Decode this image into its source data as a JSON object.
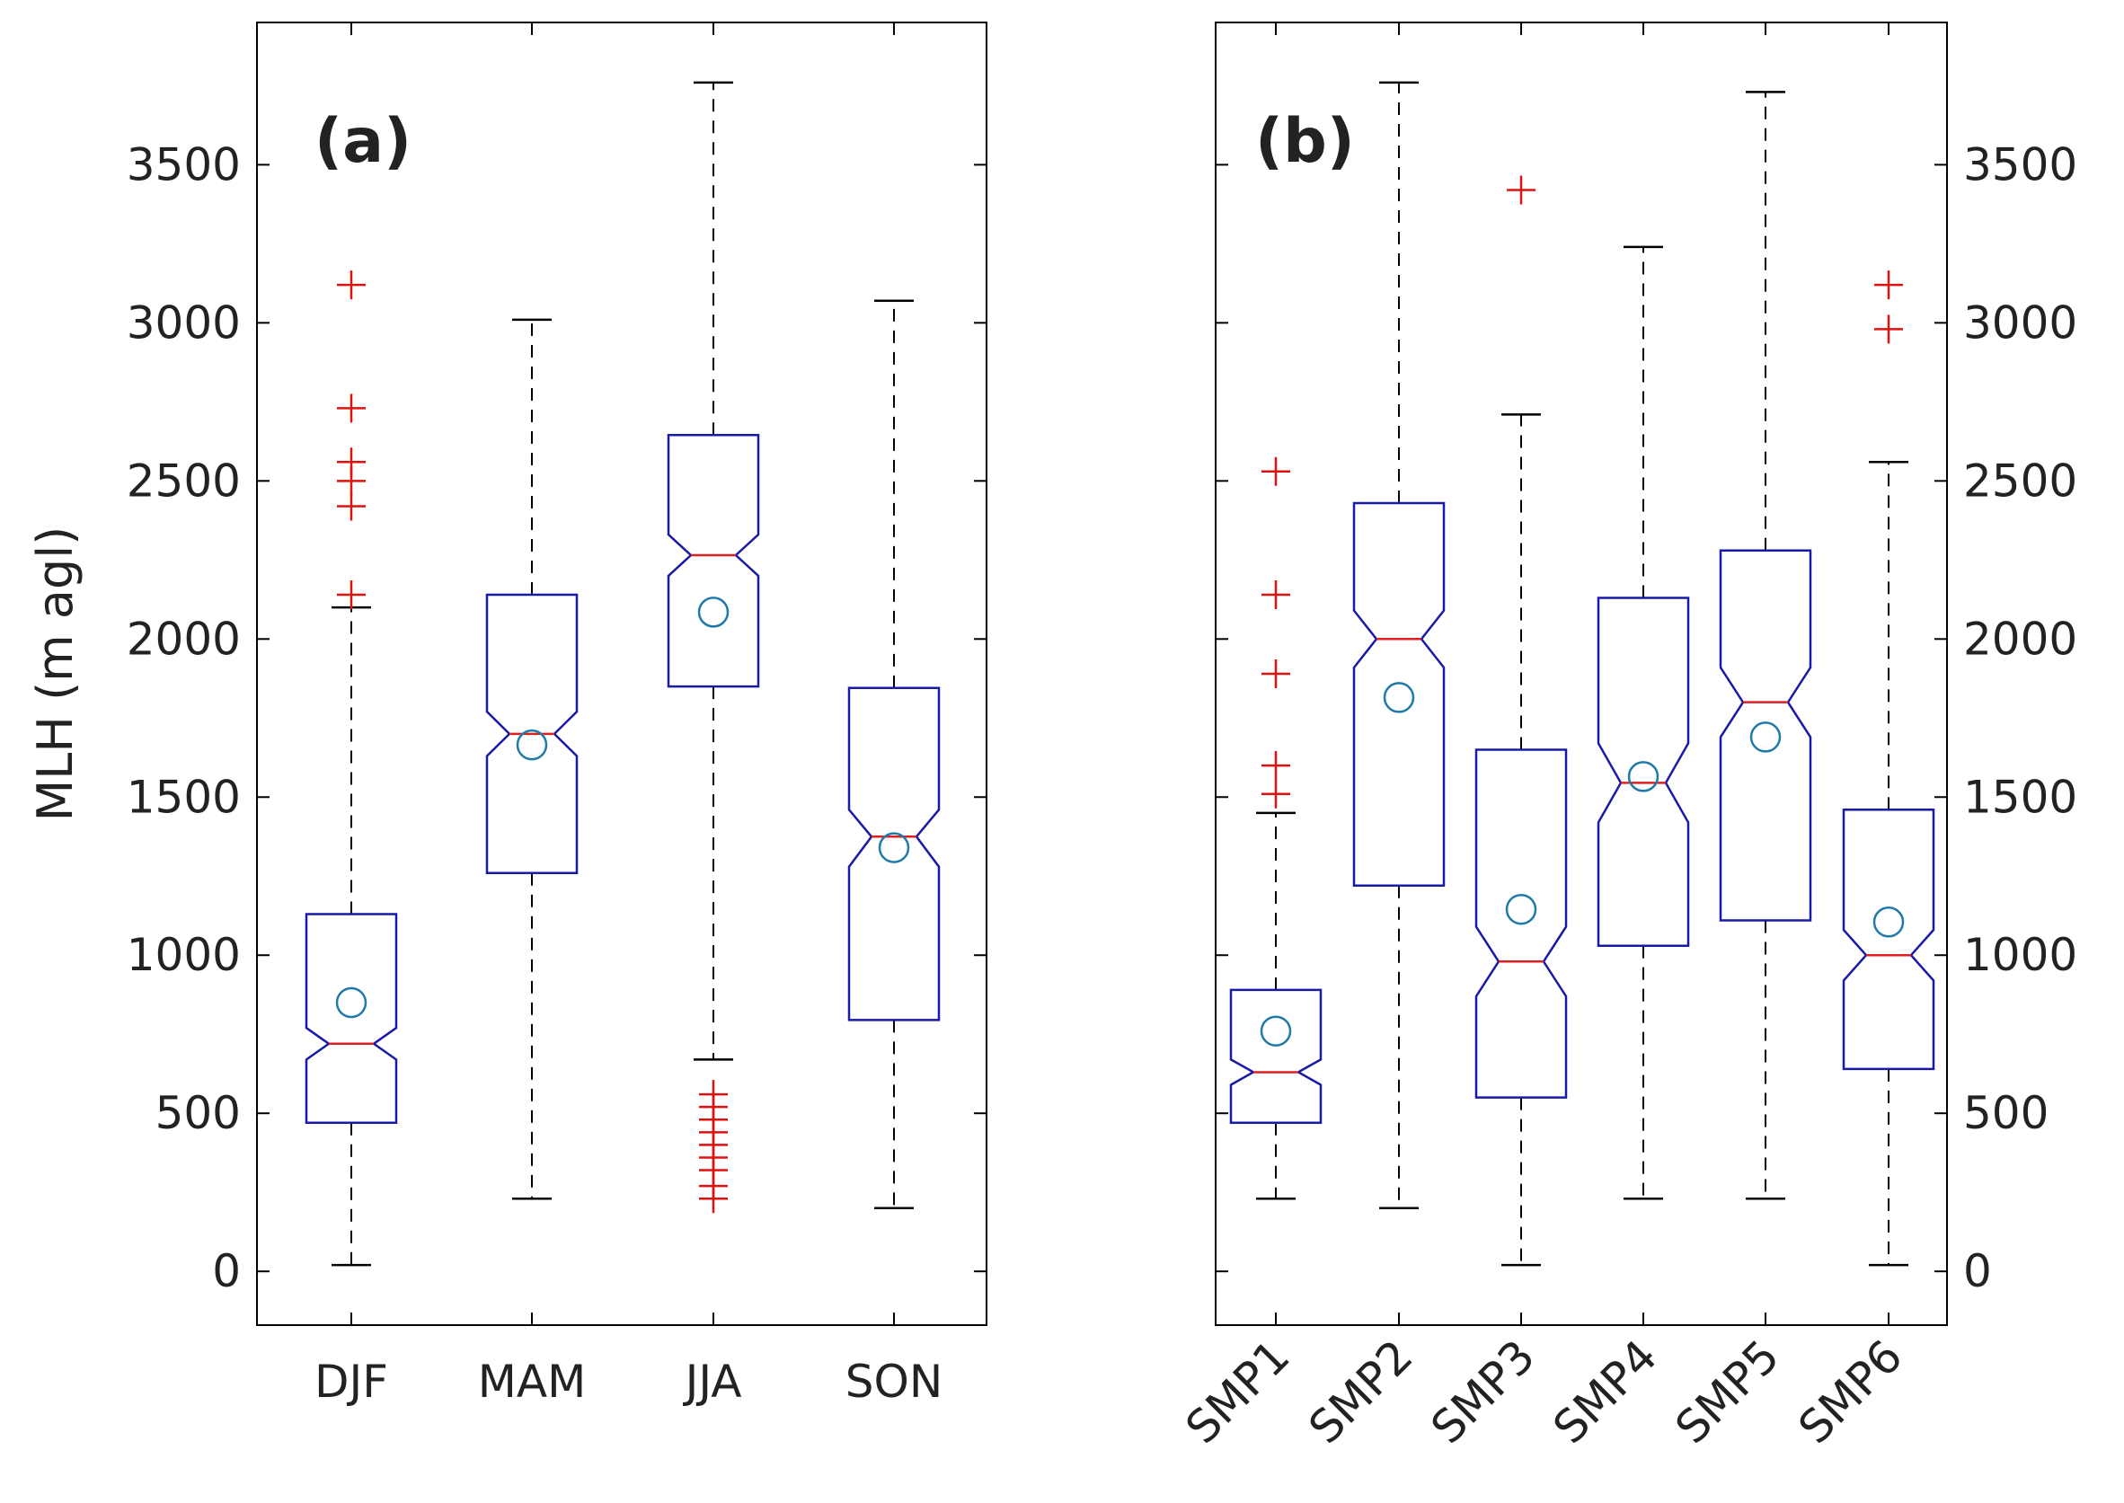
{
  "colors": {
    "box": "#1a1aa8",
    "median": "#e02020",
    "outlier": "#e01010",
    "mean": "#1f7aa8",
    "whisker": "#000000",
    "axis": "#000000",
    "text": "#222222",
    "background": "#ffffff"
  },
  "chart_data": [
    {
      "type": "boxplot",
      "panel_label": "(a)",
      "ylabel": "MLH (m agl)",
      "ylim": [
        -170,
        3950
      ],
      "yticks": [
        0,
        500,
        1000,
        1500,
        2000,
        2500,
        3000,
        3500
      ],
      "ytick_labels": [
        "0",
        "500",
        "1000",
        "1500",
        "2000",
        "2500",
        "3000",
        "3500"
      ],
      "y_axis_side": "left",
      "x_tick_rotation": 0,
      "categories": [
        "DJF",
        "MAM",
        "JJA",
        "SON"
      ],
      "boxes": [
        {
          "whisker_low": 20,
          "q1": 470,
          "notch_low": 670,
          "median": 720,
          "notch_high": 770,
          "q3": 1130,
          "whisker_high": 2100,
          "mean": 850,
          "outliers": [
            2140,
            2420,
            2500,
            2560,
            2730,
            3120
          ]
        },
        {
          "whisker_low": 230,
          "q1": 1260,
          "notch_low": 1630,
          "median": 1700,
          "notch_high": 1770,
          "q3": 2140,
          "whisker_high": 3010,
          "mean": 1665,
          "outliers": []
        },
        {
          "whisker_low": 670,
          "q1": 1850,
          "notch_low": 2200,
          "median": 2265,
          "notch_high": 2330,
          "q3": 2645,
          "whisker_high": 3760,
          "mean": 2085,
          "outliers": [
            230,
            270,
            320,
            360,
            400,
            440,
            480,
            520,
            560
          ]
        },
        {
          "whisker_low": 200,
          "q1": 795,
          "notch_low": 1280,
          "median": 1375,
          "notch_high": 1460,
          "q3": 1845,
          "whisker_high": 3070,
          "mean": 1340,
          "outliers": []
        }
      ]
    },
    {
      "type": "boxplot",
      "panel_label": "(b)",
      "ylabel": "",
      "ylim": [
        -170,
        3950
      ],
      "yticks": [
        0,
        500,
        1000,
        1500,
        2000,
        2500,
        3000,
        3500
      ],
      "ytick_labels": [
        "0",
        "500",
        "1000",
        "1500",
        "2000",
        "2500",
        "3000",
        "3500"
      ],
      "y_axis_side": "right",
      "x_tick_rotation": -45,
      "categories": [
        "SMP1",
        "SMP2",
        "SMP3",
        "SMP4",
        "SMP5",
        "SMP6"
      ],
      "boxes": [
        {
          "whisker_low": 230,
          "q1": 470,
          "notch_low": 590,
          "median": 630,
          "notch_high": 670,
          "q3": 890,
          "whisker_high": 1450,
          "mean": 760,
          "outliers": [
            1510,
            1600,
            1890,
            2140,
            2530
          ]
        },
        {
          "whisker_low": 200,
          "q1": 1220,
          "notch_low": 1910,
          "median": 2000,
          "notch_high": 2090,
          "q3": 2430,
          "whisker_high": 3760,
          "mean": 1815,
          "outliers": []
        },
        {
          "whisker_low": 20,
          "q1": 550,
          "notch_low": 870,
          "median": 980,
          "notch_high": 1090,
          "q3": 1650,
          "whisker_high": 2710,
          "mean": 1145,
          "outliers": [
            3420
          ]
        },
        {
          "whisker_low": 230,
          "q1": 1030,
          "notch_low": 1420,
          "median": 1545,
          "notch_high": 1670,
          "q3": 2130,
          "whisker_high": 3240,
          "mean": 1565,
          "outliers": []
        },
        {
          "whisker_low": 230,
          "q1": 1110,
          "notch_low": 1690,
          "median": 1800,
          "notch_high": 1910,
          "q3": 2280,
          "whisker_high": 3730,
          "mean": 1690,
          "outliers": []
        },
        {
          "whisker_low": 20,
          "q1": 640,
          "notch_low": 920,
          "median": 1000,
          "notch_high": 1080,
          "q3": 1460,
          "whisker_high": 2560,
          "mean": 1105,
          "outliers": [
            2980,
            3120
          ]
        }
      ]
    }
  ]
}
